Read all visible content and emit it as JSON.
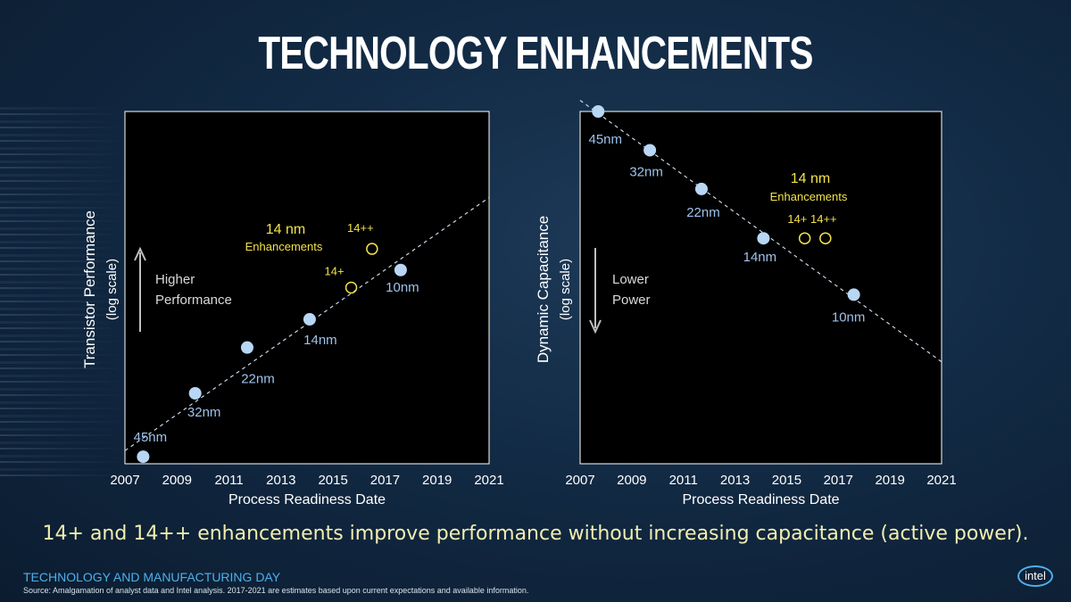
{
  "slide_title": "TECHNOLOGY ENHANCEMENTS",
  "caption": "14+ and 14++ enhancements improve performance without increasing capacitance (active power).",
  "footer": {
    "event": "TECHNOLOGY AND MANUFACTURING DAY",
    "source": "Source: Amalgamation of analyst data and Intel analysis. 2017-2021 are estimates based upon current expectations and available information.",
    "logo": "intel"
  },
  "colors": {
    "node_fill": "#b8d7f5",
    "enhancement": "#f2e24a",
    "node_label": "#9ec2ec",
    "plot_bg": "#000000",
    "footer_accent": "#4fb0ea"
  },
  "chart_data": [
    {
      "type": "scatter",
      "xlabel": "Process Readiness Date",
      "ylabel": "Transistor Performance",
      "ylabel_sub": "(log scale)",
      "y_scale": "log",
      "xlim": [
        2007,
        2021
      ],
      "x_ticks": [
        "2007",
        "2009",
        "2011",
        "2013",
        "2015",
        "2017",
        "2019",
        "2021"
      ],
      "grid": false,
      "trend_line": "dashed",
      "direction_label": [
        "Higher",
        "Performance"
      ],
      "direction": "up",
      "enhancement_title": [
        "14 nm",
        "Enhancements"
      ],
      "nodes": [
        {
          "label": "45nm",
          "x": 2007.7,
          "y": 0.02
        },
        {
          "label": "32nm",
          "x": 2009.7,
          "y": 0.2
        },
        {
          "label": "22nm",
          "x": 2011.7,
          "y": 0.33
        },
        {
          "label": "14nm",
          "x": 2014.1,
          "y": 0.41
        },
        {
          "label": "10nm",
          "x": 2017.6,
          "y": 0.55
        }
      ],
      "enhancements": [
        {
          "label": "14+",
          "x": 2015.7,
          "y": 0.5
        },
        {
          "label": "14++",
          "x": 2016.5,
          "y": 0.61
        }
      ]
    },
    {
      "type": "scatter",
      "xlabel": "Process Readiness Date",
      "ylabel": "Dynamic Capacitance",
      "ylabel_sub": "(log scale)",
      "y_scale": "log",
      "xlim": [
        2007,
        2021
      ],
      "x_ticks": [
        "2007",
        "2009",
        "2011",
        "2013",
        "2015",
        "2017",
        "2019",
        "2021"
      ],
      "grid": false,
      "trend_line": "dashed",
      "direction_label": [
        "Lower",
        "Power"
      ],
      "direction": "down",
      "enhancement_title": [
        "14 nm",
        "Enhancements"
      ],
      "enhancement_label": "14+ 14++",
      "nodes": [
        {
          "label": "45nm",
          "x": 2007.7,
          "y": 1.0
        },
        {
          "label": "32nm",
          "x": 2009.7,
          "y": 0.89
        },
        {
          "label": "22nm",
          "x": 2011.7,
          "y": 0.78
        },
        {
          "label": "14nm",
          "x": 2014.1,
          "y": 0.64
        },
        {
          "label": "10nm",
          "x": 2017.6,
          "y": 0.48
        }
      ],
      "enhancements": [
        {
          "label": "14+",
          "x": 2015.7,
          "y": 0.64
        },
        {
          "label": "14++",
          "x": 2016.5,
          "y": 0.64
        }
      ]
    }
  ]
}
